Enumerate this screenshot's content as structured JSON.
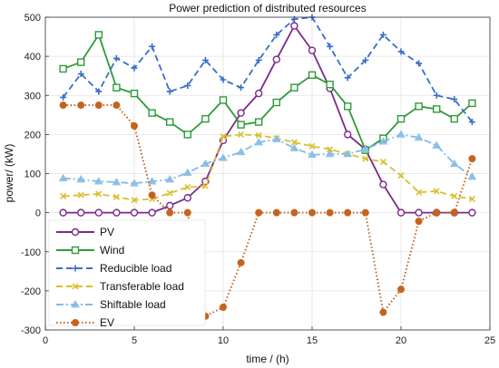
{
  "chart_data": {
    "type": "line",
    "title": "Power prediction of distributed resources",
    "xlabel": "time / (h)",
    "ylabel": "power/ (kW)",
    "xlim": [
      0,
      25
    ],
    "ylim": [
      -300,
      500
    ],
    "x_ticks": [
      0,
      5,
      10,
      15,
      20,
      25
    ],
    "y_ticks": [
      -300,
      -200,
      -100,
      0,
      100,
      200,
      300,
      400,
      500
    ],
    "grid": true,
    "legend_position": "bottom-left",
    "x": [
      1,
      2,
      3,
      4,
      5,
      6,
      7,
      8,
      9,
      10,
      11,
      12,
      13,
      14,
      15,
      16,
      17,
      18,
      19,
      20,
      21,
      22,
      23,
      24
    ],
    "series": [
      {
        "name": "PV",
        "color": "#7a2a8a",
        "line": "solid",
        "marker": "circle-open",
        "values": [
          0,
          0,
          0,
          0,
          0,
          0,
          18,
          38,
          80,
          185,
          255,
          305,
          392,
          478,
          415,
          318,
          200,
          162,
          72,
          0,
          0,
          0,
          0,
          0
        ]
      },
      {
        "name": "Wind",
        "color": "#2e9a3a",
        "line": "solid",
        "marker": "square",
        "values": [
          368,
          385,
          455,
          320,
          305,
          255,
          232,
          200,
          240,
          288,
          225,
          232,
          282,
          320,
          352,
          328,
          272,
          160,
          190,
          240,
          272,
          265,
          240,
          280
        ]
      },
      {
        "name": "Reducible load",
        "color": "#3a6fc8",
        "line": "dashed",
        "marker": "plus",
        "values": [
          295,
          355,
          310,
          395,
          370,
          425,
          310,
          325,
          390,
          340,
          320,
          390,
          455,
          495,
          500,
          425,
          345,
          390,
          455,
          412,
          382,
          300,
          290,
          232
        ]
      },
      {
        "name": "Transferable load",
        "color": "#d8c030",
        "line": "dashed",
        "marker": "x",
        "values": [
          42,
          45,
          48,
          40,
          32,
          35,
          50,
          65,
          68,
          195,
          200,
          198,
          190,
          180,
          170,
          162,
          150,
          138,
          130,
          95,
          52,
          55,
          42,
          35
        ]
      },
      {
        "name": "Shiftable load",
        "color": "#82bce6",
        "line": "dashdot",
        "marker": "triangle",
        "values": [
          88,
          85,
          80,
          78,
          75,
          80,
          85,
          102,
          125,
          140,
          155,
          180,
          188,
          165,
          148,
          150,
          150,
          162,
          182,
          200,
          192,
          172,
          125,
          92
        ]
      },
      {
        "name": "EV",
        "color": "#c4641e",
        "line": "dotted",
        "marker": "circle-filled",
        "values": [
          275,
          275,
          275,
          275,
          222,
          45,
          0,
          0,
          -265,
          -242,
          -128,
          0,
          0,
          0,
          0,
          0,
          0,
          0,
          -255,
          -196,
          -22,
          0,
          0,
          138
        ]
      }
    ]
  }
}
